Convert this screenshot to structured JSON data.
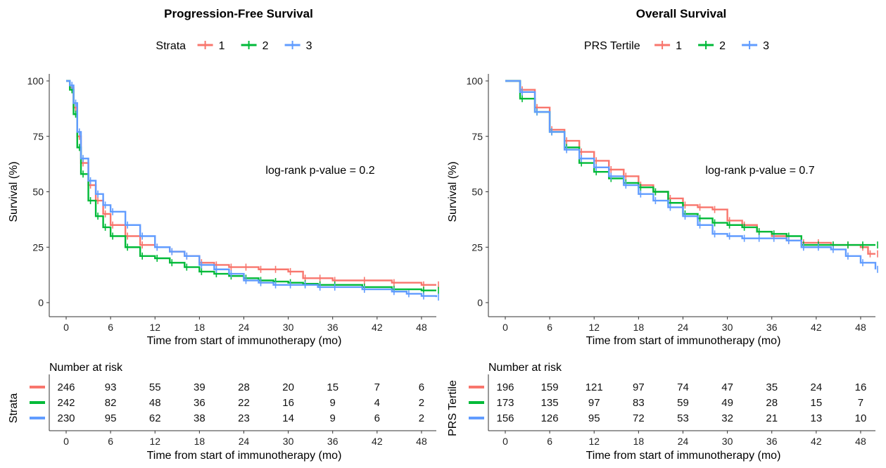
{
  "colors": {
    "1": "#F8766D",
    "2": "#00BA38",
    "3": "#619CFF"
  },
  "chart_data": [
    {
      "type": "line",
      "title": "Progression-Free Survival",
      "xlabel": "Time from start of immunotherapy (mo)",
      "ylabel": "Survival (%)",
      "xlim": [
        0,
        50
      ],
      "ylim": [
        0,
        100
      ],
      "xticks": [
        0,
        6,
        12,
        18,
        24,
        30,
        36,
        42,
        48
      ],
      "yticks": [
        0,
        25,
        50,
        75,
        100
      ],
      "grid": false,
      "legend": {
        "title": "Strata",
        "position": "top",
        "labels": [
          "1",
          "2",
          "3"
        ]
      },
      "annotation": "log-rank p-value = 0.2",
      "series": [
        {
          "name": "1",
          "x": [
            0,
            0.5,
            1,
            1.5,
            2,
            3,
            4,
            5,
            6,
            8,
            10,
            12,
            14,
            16,
            18,
            20,
            22,
            24,
            26,
            28,
            30,
            32,
            34,
            36,
            40,
            44,
            48,
            50
          ],
          "y": [
            100,
            97,
            88,
            75,
            63,
            53,
            46,
            40,
            35,
            30,
            26,
            25,
            23,
            21,
            18,
            17,
            16,
            16,
            15,
            15,
            14,
            11,
            11,
            10,
            10,
            9,
            8,
            8
          ]
        },
        {
          "name": "2",
          "x": [
            0,
            0.5,
            1,
            1.5,
            2,
            3,
            4,
            5,
            6,
            8,
            10,
            12,
            14,
            16,
            18,
            20,
            22,
            24,
            26,
            28,
            30,
            32,
            34,
            36,
            40,
            44,
            48,
            50
          ],
          "y": [
            100,
            96,
            85,
            70,
            58,
            46,
            39,
            34,
            30,
            25,
            21,
            20,
            18,
            16,
            14,
            13,
            12,
            11,
            10,
            9.5,
            9,
            8.5,
            8,
            8,
            7,
            6,
            5.5,
            5.5
          ]
        },
        {
          "name": "3",
          "x": [
            0,
            0.5,
            1,
            1.5,
            2,
            3,
            4,
            5,
            6,
            8,
            10,
            12,
            14,
            16,
            18,
            20,
            22,
            24,
            26,
            28,
            30,
            32,
            34,
            36,
            40,
            44,
            46,
            48,
            50
          ],
          "y": [
            100,
            98,
            90,
            77,
            65,
            55,
            49,
            44,
            41,
            35,
            30,
            25,
            23,
            21,
            17,
            15,
            13,
            10,
            9,
            8,
            8,
            8,
            7,
            7,
            6,
            5,
            4,
            3,
            2.5
          ]
        }
      ],
      "risk_table": {
        "title": "Number at risk",
        "ylabel": "Strata",
        "times": [
          0,
          6,
          12,
          18,
          24,
          30,
          36,
          42,
          48
        ],
        "rows": [
          {
            "name": "1",
            "values": [
              246,
              93,
              55,
              39,
              28,
              20,
              15,
              7,
              6
            ]
          },
          {
            "name": "2",
            "values": [
              242,
              82,
              48,
              36,
              22,
              16,
              9,
              4,
              2
            ]
          },
          {
            "name": "3",
            "values": [
              230,
              95,
              62,
              38,
              23,
              14,
              9,
              6,
              2
            ]
          }
        ],
        "xlabel": "Time from start of immunotherapy (mo)"
      }
    },
    {
      "type": "line",
      "title": "Overall Survival",
      "xlabel": "Time from start of immunotherapy (mo)",
      "ylabel": "Survival (%)",
      "xlim": [
        0,
        50
      ],
      "ylim": [
        0,
        100
      ],
      "xticks": [
        0,
        6,
        12,
        18,
        24,
        30,
        36,
        42,
        48
      ],
      "yticks": [
        0,
        25,
        50,
        75,
        100
      ],
      "grid": false,
      "legend": {
        "title": "PRS Tertile",
        "position": "top",
        "labels": [
          "1",
          "2",
          "3"
        ]
      },
      "annotation": "log-rank p-value = 0.7",
      "series": [
        {
          "name": "1",
          "x": [
            0,
            2,
            4,
            6,
            8,
            10,
            12,
            14,
            16,
            18,
            20,
            22,
            24,
            26,
            28,
            30,
            32,
            34,
            36,
            38,
            40,
            42,
            44,
            46,
            48,
            49,
            50
          ],
          "y": [
            100,
            96,
            88,
            78,
            73,
            68,
            64,
            60,
            57,
            53,
            50,
            47,
            44,
            43,
            42,
            37,
            35,
            32,
            30,
            28,
            27,
            27,
            26,
            26,
            25,
            22,
            22
          ]
        },
        {
          "name": "2",
          "x": [
            0,
            2,
            4,
            6,
            8,
            10,
            12,
            14,
            16,
            18,
            20,
            22,
            24,
            26,
            28,
            30,
            32,
            34,
            36,
            38,
            40,
            42,
            44,
            46,
            48,
            50
          ],
          "y": [
            100,
            92,
            86,
            77,
            70,
            63,
            59,
            56,
            54,
            52,
            50,
            45,
            40,
            38,
            36,
            35,
            34,
            32,
            31,
            30,
            26,
            26,
            26,
            26,
            26,
            26
          ]
        },
        {
          "name": "3",
          "x": [
            0,
            2,
            4,
            6,
            8,
            10,
            12,
            14,
            16,
            18,
            20,
            22,
            24,
            26,
            28,
            30,
            32,
            34,
            36,
            38,
            40,
            42,
            44,
            46,
            48,
            50
          ],
          "y": [
            100,
            95,
            86,
            77,
            69,
            65,
            61,
            57,
            53,
            49,
            46,
            43,
            39,
            35,
            31,
            30,
            29,
            29,
            29,
            28,
            25,
            25,
            24,
            21,
            18,
            15
          ]
        }
      ],
      "risk_table": {
        "title": "Number at risk",
        "ylabel": "PRS Tertile",
        "times": [
          0,
          6,
          12,
          18,
          24,
          30,
          36,
          42,
          48
        ],
        "rows": [
          {
            "name": "1",
            "values": [
              196,
              159,
              121,
              97,
              74,
              47,
              35,
              24,
              16
            ]
          },
          {
            "name": "2",
            "values": [
              173,
              135,
              97,
              83,
              59,
              49,
              28,
              15,
              7
            ]
          },
          {
            "name": "3",
            "values": [
              156,
              126,
              95,
              72,
              53,
              32,
              21,
              13,
              10
            ]
          }
        ],
        "xlabel": "Time from start of immunotherapy (mo)"
      }
    }
  ]
}
